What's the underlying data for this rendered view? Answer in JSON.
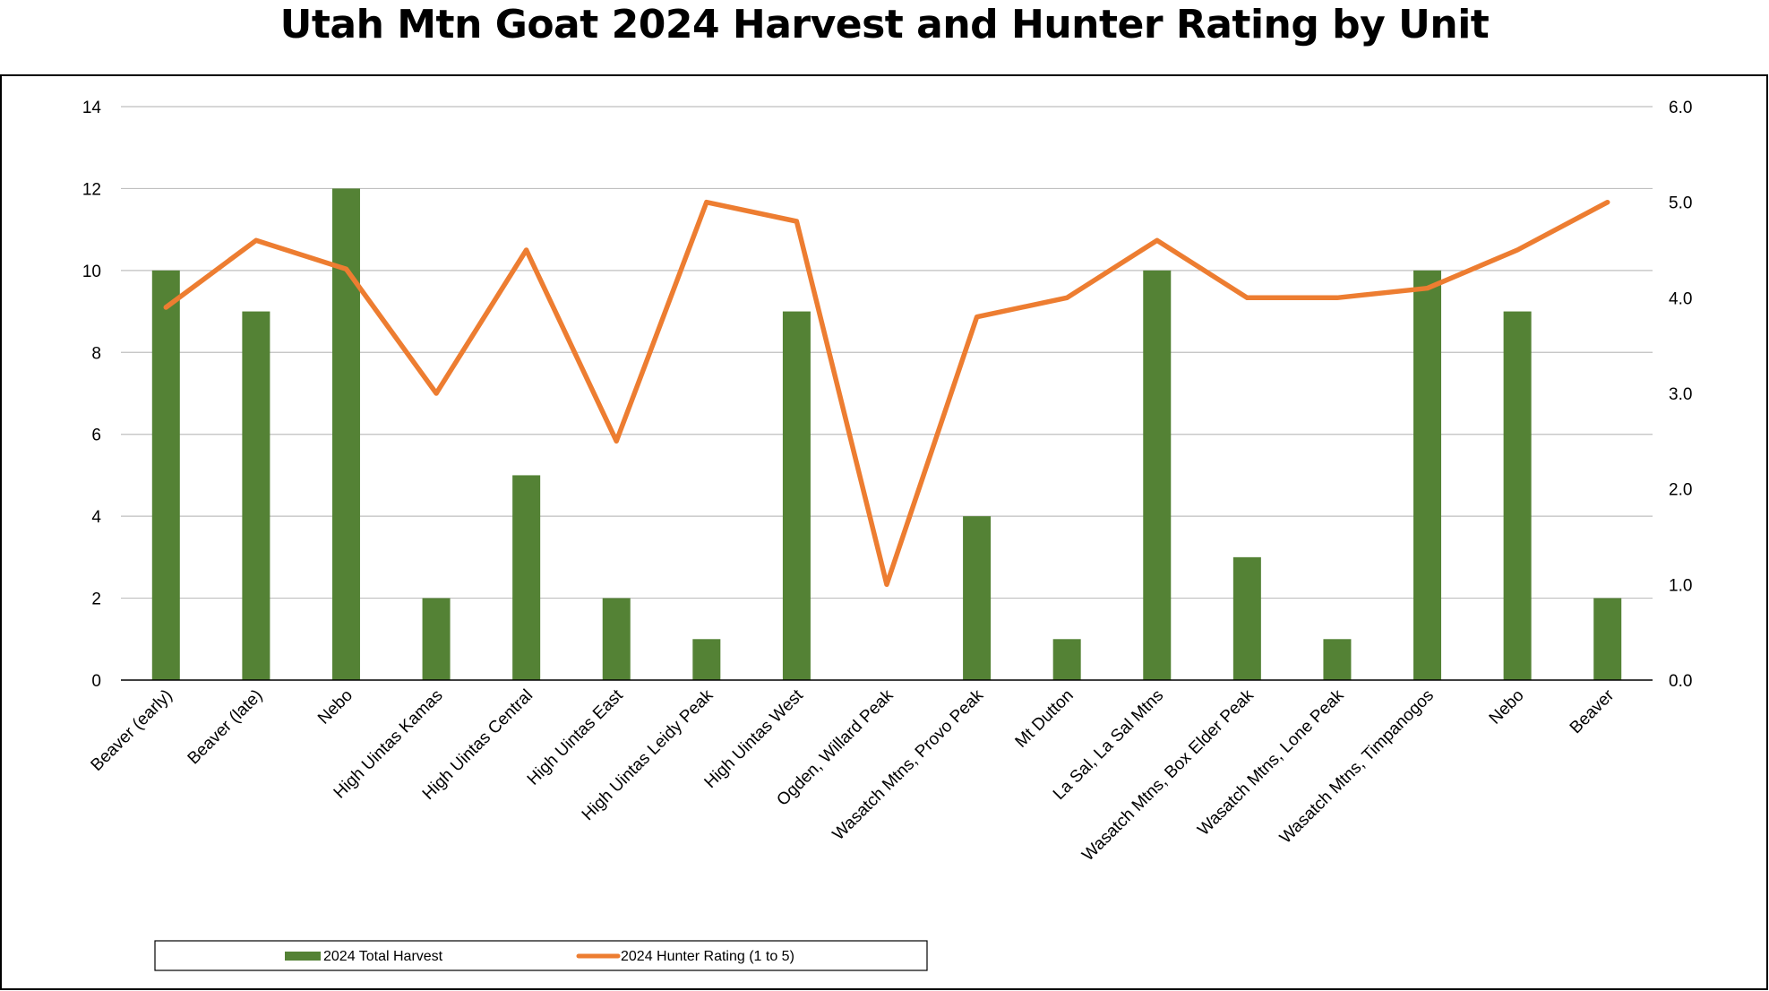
{
  "chart_data": {
    "type": "bar",
    "title": "Utah Mtn Goat 2024 Harvest and Hunter Rating by Unit",
    "categories": [
      "Beaver (early)",
      "Beaver (late)",
      "Nebo",
      "High Uintas Kamas",
      "High Uintas Central",
      "High Uintas East",
      "High Uintas Leidy Peak",
      "High Uintas West",
      "Ogden, Willard Peak",
      "Wasatch Mtns, Provo Peak",
      "Mt Dutton",
      "La Sal, La Sal Mtns",
      "Wasatch Mtns, Box Elder Peak",
      "Wasatch Mtns, Lone Peak",
      "Wasatch Mtns, Timpanogos",
      "Nebo",
      "Beaver"
    ],
    "series": [
      {
        "name": "2024 Total Harvest",
        "type": "bar",
        "axis": "left",
        "color": "#548235",
        "values": [
          10,
          9,
          12,
          2,
          5,
          2,
          1,
          9,
          0,
          4,
          1,
          10,
          3,
          1,
          10,
          9,
          2
        ]
      },
      {
        "name": "2024 Hunter Rating (1 to 5)",
        "type": "line",
        "axis": "right",
        "color": "#ED7D31",
        "values": [
          3.9,
          4.6,
          4.3,
          3.0,
          4.5,
          2.5,
          5.0,
          4.8,
          1.0,
          3.8,
          4.0,
          4.6,
          4.0,
          4.0,
          4.1,
          4.5,
          5.0
        ]
      }
    ],
    "y_left": {
      "min": 0,
      "max": 14,
      "ticks": [
        "0",
        "2",
        "4",
        "6",
        "8",
        "10",
        "12",
        "14"
      ]
    },
    "y_right": {
      "min": 0,
      "max": 6,
      "ticks": [
        "0.0",
        "1.0",
        "2.0",
        "3.0",
        "4.0",
        "5.0",
        "6.0"
      ]
    },
    "grid": true,
    "legend_position": "bottom"
  }
}
